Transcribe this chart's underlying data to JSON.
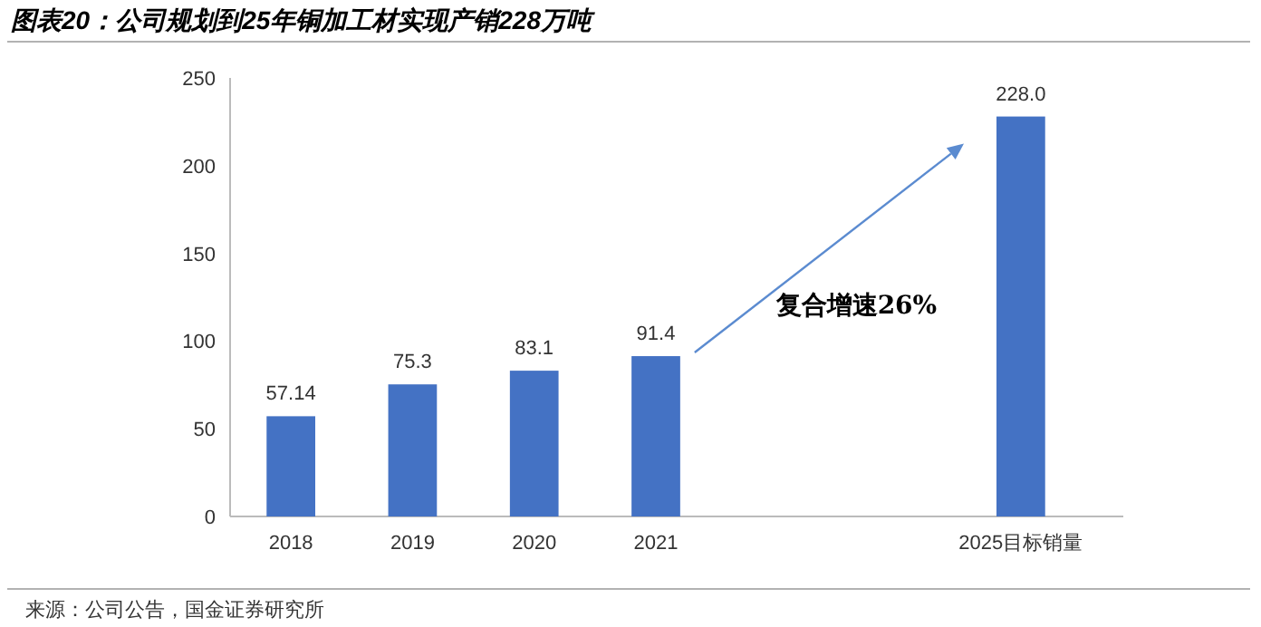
{
  "chart_data": {
    "type": "bar",
    "title": "图表20：公司规划到25年铜加工材实现产销228万吨",
    "categories": [
      "2018",
      "2019",
      "2020",
      "2021",
      null,
      null,
      "2025目标销量"
    ],
    "values": [
      57.14,
      75.3,
      83.1,
      91.4,
      null,
      null,
      228.0
    ],
    "value_labels": [
      "57.14",
      "75.3",
      "83.1",
      "91.4",
      null,
      null,
      "228.0"
    ],
    "color": "#4472c4",
    "ylim": [
      0,
      250
    ],
    "yticks": [
      0,
      50,
      100,
      150,
      200,
      250
    ],
    "annotations": [
      "复合增速26%",
      "来源：公司公告，国金证券研究所"
    ]
  }
}
